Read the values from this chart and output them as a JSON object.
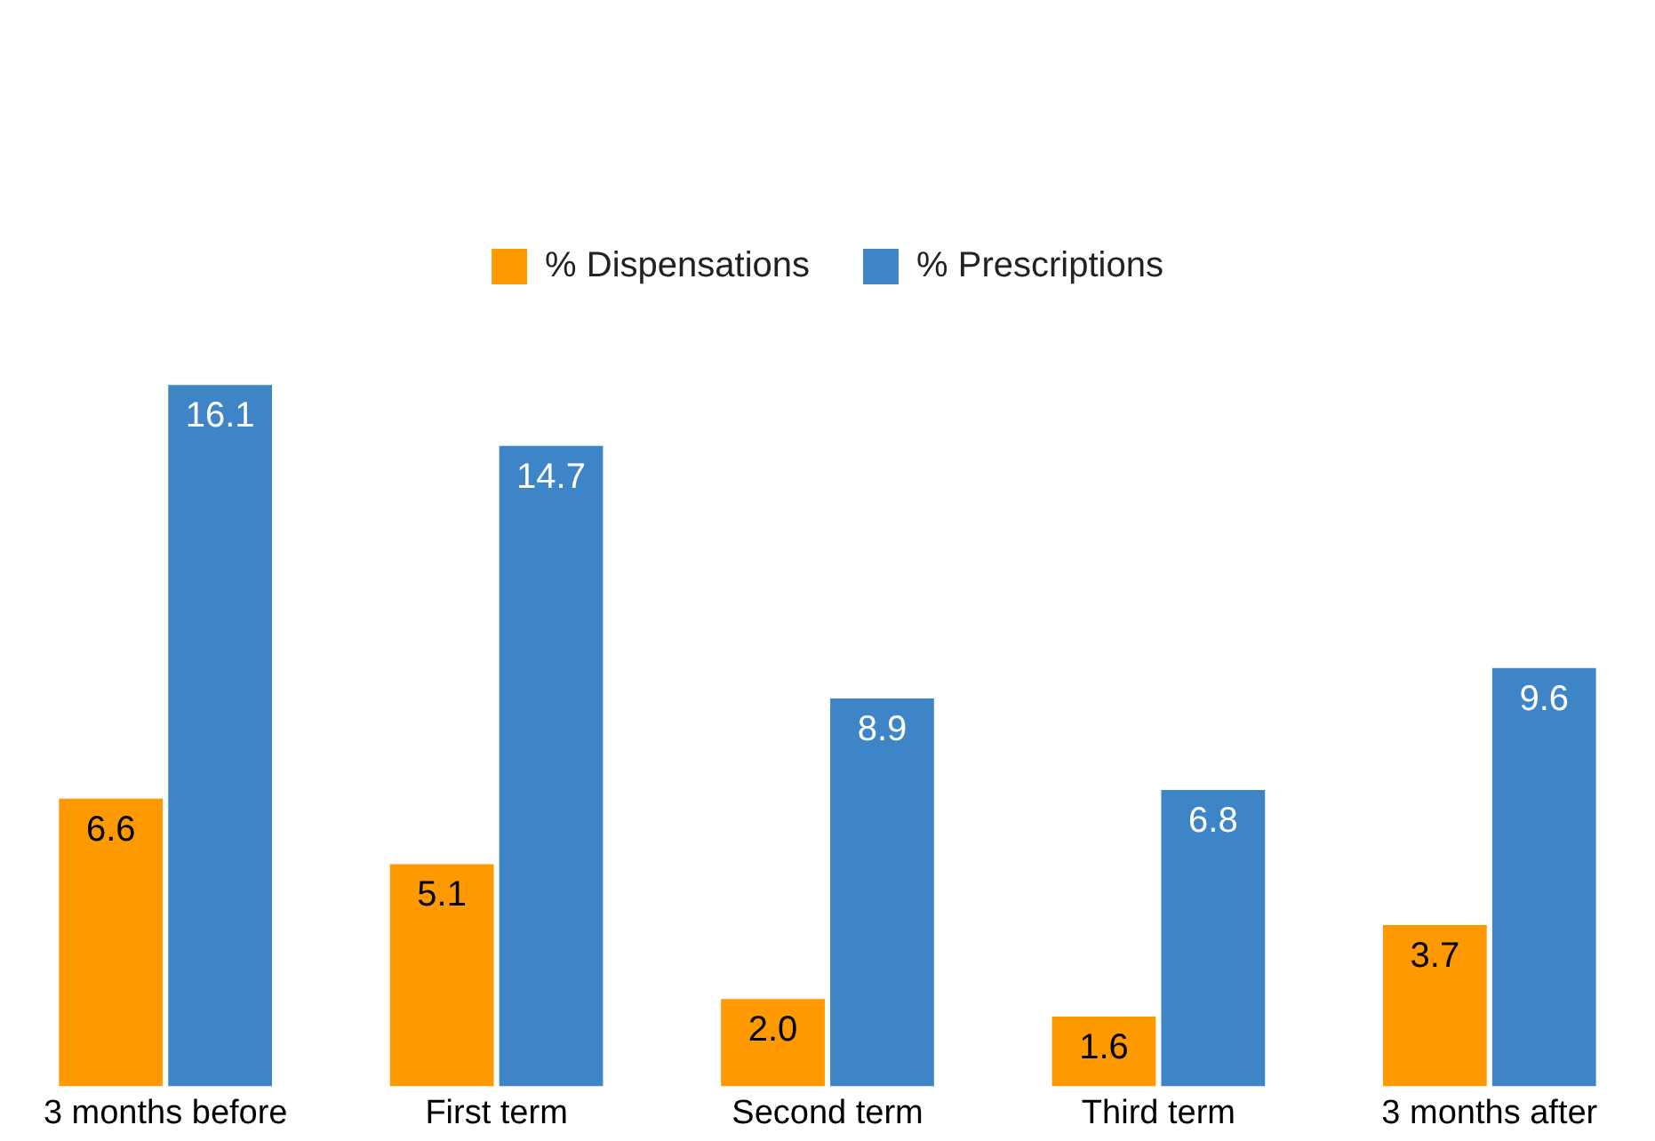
{
  "chart_data": {
    "type": "bar",
    "categories": [
      "3 months before",
      "First term",
      "Second term",
      "Third term",
      "3 months after"
    ],
    "series": [
      {
        "name": "% Dispensations",
        "color": "#ff9900",
        "values": [
          6.6,
          5.1,
          2.0,
          1.6,
          3.7
        ],
        "value_labels": [
          "6.6",
          "5.1",
          "2.0",
          "1.6",
          "3.7"
        ]
      },
      {
        "name": "% Prescriptions",
        "color": "#3d85c6",
        "values": [
          16.1,
          14.7,
          8.9,
          6.8,
          9.6
        ],
        "value_labels": [
          "16.1",
          "14.7",
          "8.9",
          "6.8",
          "9.6"
        ]
      }
    ],
    "legend": "top",
    "grid": false
  }
}
